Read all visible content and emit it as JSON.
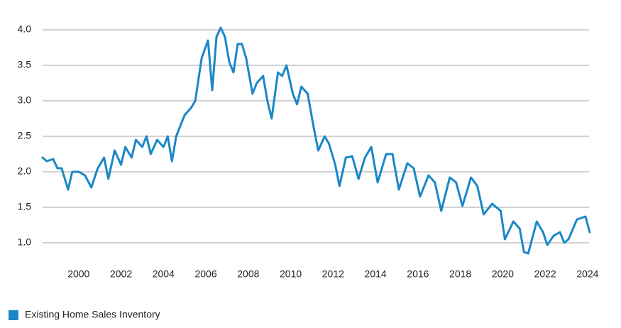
{
  "chart_data": {
    "type": "line",
    "x": [
      1998.3,
      1998.5,
      1998.8,
      1999.0,
      1999.2,
      1999.5,
      1999.7,
      2000.0,
      2000.3,
      2000.6,
      2000.9,
      2001.2,
      2001.4,
      2001.7,
      2002.0,
      2002.2,
      2002.5,
      2002.7,
      2003.0,
      2003.2,
      2003.4,
      2003.7,
      2004.0,
      2004.2,
      2004.4,
      2004.6,
      2005.0,
      2005.3,
      2005.5,
      2005.8,
      2006.1,
      2006.3,
      2006.5,
      2006.7,
      2006.9,
      2007.1,
      2007.3,
      2007.5,
      2007.7,
      2007.9,
      2008.2,
      2008.4,
      2008.7,
      2008.9,
      2009.1,
      2009.4,
      2009.6,
      2009.8,
      2010.1,
      2010.3,
      2010.5,
      2010.8,
      2011.1,
      2011.3,
      2011.6,
      2011.8,
      2012.1,
      2012.3,
      2012.6,
      2012.9,
      2013.2,
      2013.5,
      2013.8,
      2014.1,
      2014.5,
      2014.8,
      2015.1,
      2015.5,
      2015.8,
      2016.1,
      2016.5,
      2016.8,
      2017.1,
      2017.5,
      2017.8,
      2018.1,
      2018.5,
      2018.8,
      2019.1,
      2019.5,
      2019.9,
      2020.1,
      2020.5,
      2020.8,
      2021.0,
      2021.2,
      2021.6,
      2021.9,
      2022.1,
      2022.4,
      2022.7,
      2022.9,
      2023.1,
      2023.5,
      2023.9,
      2024.1
    ],
    "series": [
      {
        "name": "Existing Home Sales Inventory",
        "color": "#1a87c6",
        "values": [
          2.2,
          2.15,
          2.18,
          2.05,
          2.05,
          1.75,
          2.0,
          2.0,
          1.95,
          1.78,
          2.05,
          2.2,
          1.9,
          2.3,
          2.1,
          2.35,
          2.2,
          2.45,
          2.35,
          2.5,
          2.25,
          2.45,
          2.35,
          2.5,
          2.15,
          2.5,
          2.8,
          2.9,
          3.0,
          3.6,
          3.85,
          3.15,
          3.9,
          4.03,
          3.9,
          3.55,
          3.4,
          3.8,
          3.8,
          3.6,
          3.1,
          3.25,
          3.35,
          3.0,
          2.75,
          3.4,
          3.35,
          3.5,
          3.1,
          2.95,
          3.2,
          3.1,
          2.6,
          2.3,
          2.5,
          2.4,
          2.1,
          1.8,
          2.2,
          2.22,
          1.9,
          2.2,
          2.35,
          1.85,
          2.25,
          2.25,
          1.75,
          2.12,
          2.05,
          1.65,
          1.95,
          1.85,
          1.45,
          1.92,
          1.85,
          1.52,
          1.92,
          1.8,
          1.4,
          1.55,
          1.45,
          1.05,
          1.3,
          1.2,
          0.87,
          0.85,
          1.3,
          1.15,
          0.97,
          1.1,
          1.15,
          1.0,
          1.05,
          1.33,
          1.37,
          1.15
        ]
      }
    ],
    "xlim": [
      1998.3,
      2024.17
    ],
    "xticks": [
      2000,
      2002,
      2004,
      2006,
      2008,
      2010,
      2012,
      2014,
      2016,
      2018,
      2020,
      2022,
      2024
    ],
    "ylim": [
      1.0,
      4.0
    ],
    "yticks": [
      {
        "value": 1.0,
        "label": "1.0"
      },
      {
        "value": 1.5,
        "label": "1.5"
      },
      {
        "value": 2.0,
        "label": "2.0"
      },
      {
        "value": 2.5,
        "label": "2.5"
      },
      {
        "value": 3.0,
        "label": "3.0"
      },
      {
        "value": 3.5,
        "label": "3.5"
      },
      {
        "value": 4.0,
        "label": "4.0"
      }
    ],
    "grid": true,
    "legend": "bottom-left"
  }
}
